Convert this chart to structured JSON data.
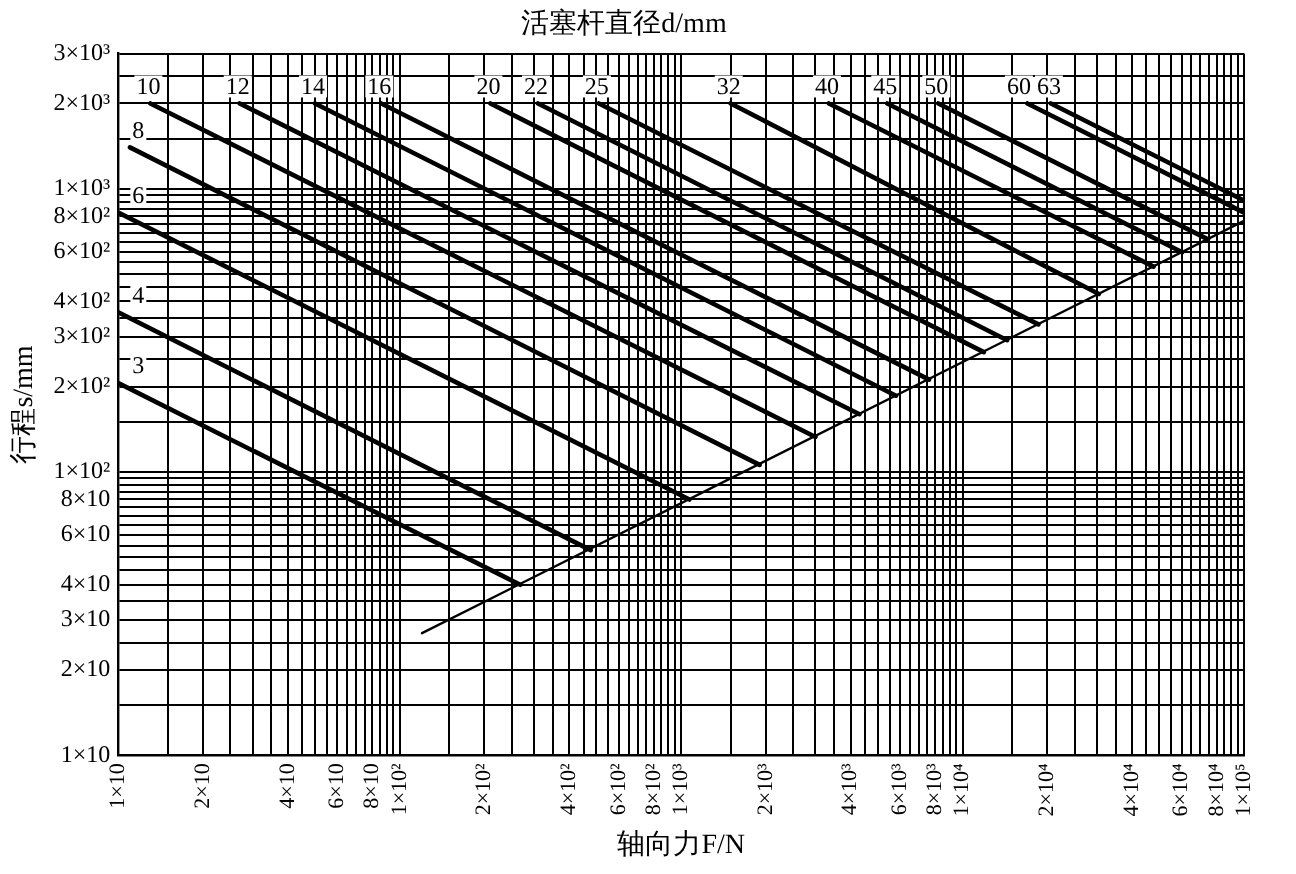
{
  "chart_data": {
    "type": "line",
    "title": "活塞杆直径d/mm",
    "xlabel": "轴向力F/N",
    "ylabel": "行程s/mm",
    "log": "xy",
    "grid": true,
    "xlim": [
      10,
      100000
    ],
    "ylim": [
      10,
      3000
    ],
    "xticks": [
      {
        "value": 10,
        "label": "1×10"
      },
      {
        "value": 15,
        "label": null
      },
      {
        "value": 20,
        "label": "2×10"
      },
      {
        "value": 25,
        "label": null
      },
      {
        "value": 30,
        "label": null
      },
      {
        "value": 35,
        "label": null
      },
      {
        "value": 40,
        "label": "4×10"
      },
      {
        "value": 45,
        "label": null
      },
      {
        "value": 50,
        "label": null
      },
      {
        "value": 55,
        "label": null
      },
      {
        "value": 60,
        "label": "6×10"
      },
      {
        "value": 65,
        "label": null
      },
      {
        "value": 70,
        "label": null
      },
      {
        "value": 75,
        "label": null
      },
      {
        "value": 80,
        "label": "8×10"
      },
      {
        "value": 85,
        "label": null
      },
      {
        "value": 90,
        "label": null
      },
      {
        "value": 95,
        "label": null
      },
      {
        "value": 100,
        "label": "1×10²"
      },
      {
        "value": 150,
        "label": null
      },
      {
        "value": 200,
        "label": "2×10²"
      },
      {
        "value": 250,
        "label": null
      },
      {
        "value": 300,
        "label": null
      },
      {
        "value": 350,
        "label": null
      },
      {
        "value": 400,
        "label": "4×10²"
      },
      {
        "value": 450,
        "label": null
      },
      {
        "value": 500,
        "label": null
      },
      {
        "value": 550,
        "label": null
      },
      {
        "value": 600,
        "label": "6×10²"
      },
      {
        "value": 650,
        "label": null
      },
      {
        "value": 700,
        "label": null
      },
      {
        "value": 750,
        "label": null
      },
      {
        "value": 800,
        "label": "8×10²"
      },
      {
        "value": 850,
        "label": null
      },
      {
        "value": 900,
        "label": null
      },
      {
        "value": 950,
        "label": null
      },
      {
        "value": 1000,
        "label": "1×10³"
      },
      {
        "value": 1500,
        "label": null
      },
      {
        "value": 2000,
        "label": "2×10³"
      },
      {
        "value": 2500,
        "label": null
      },
      {
        "value": 3000,
        "label": null
      },
      {
        "value": 3500,
        "label": null
      },
      {
        "value": 4000,
        "label": "4×10³"
      },
      {
        "value": 4500,
        "label": null
      },
      {
        "value": 5000,
        "label": null
      },
      {
        "value": 5500,
        "label": null
      },
      {
        "value": 6000,
        "label": "6×10³"
      },
      {
        "value": 6500,
        "label": null
      },
      {
        "value": 7000,
        "label": null
      },
      {
        "value": 7500,
        "label": null
      },
      {
        "value": 8000,
        "label": "8×10³"
      },
      {
        "value": 8500,
        "label": null
      },
      {
        "value": 9000,
        "label": null
      },
      {
        "value": 9500,
        "label": null
      },
      {
        "value": 10000,
        "label": "1×10⁴"
      },
      {
        "value": 15000,
        "label": null
      },
      {
        "value": 20000,
        "label": "2×10⁴"
      },
      {
        "value": 25000,
        "label": null
      },
      {
        "value": 30000,
        "label": null
      },
      {
        "value": 35000,
        "label": null
      },
      {
        "value": 40000,
        "label": "4×10⁴"
      },
      {
        "value": 45000,
        "label": null
      },
      {
        "value": 50000,
        "label": null
      },
      {
        "value": 55000,
        "label": null
      },
      {
        "value": 60000,
        "label": "6×10⁴"
      },
      {
        "value": 65000,
        "label": null
      },
      {
        "value": 70000,
        "label": null
      },
      {
        "value": 75000,
        "label": null
      },
      {
        "value": 80000,
        "label": "8×10⁴"
      },
      {
        "value": 85000,
        "label": null
      },
      {
        "value": 90000,
        "label": null
      },
      {
        "value": 95000,
        "label": null
      },
      {
        "value": 100000,
        "label": "1×10⁵"
      }
    ],
    "yticks": [
      {
        "value": 10,
        "label": "1×10"
      },
      {
        "value": 15,
        "label": null
      },
      {
        "value": 20,
        "label": "2×10"
      },
      {
        "value": 25,
        "label": null
      },
      {
        "value": 30,
        "label": "3×10"
      },
      {
        "value": 35,
        "label": null
      },
      {
        "value": 40,
        "label": "4×10"
      },
      {
        "value": 45,
        "label": null
      },
      {
        "value": 50,
        "label": null
      },
      {
        "value": 55,
        "label": null
      },
      {
        "value": 60,
        "label": "6×10"
      },
      {
        "value": 65,
        "label": null
      },
      {
        "value": 70,
        "label": null
      },
      {
        "value": 75,
        "label": null
      },
      {
        "value": 80,
        "label": "8×10"
      },
      {
        "value": 85,
        "label": null
      },
      {
        "value": 90,
        "label": null
      },
      {
        "value": 95,
        "label": null
      },
      {
        "value": 100,
        "label": "1×10²"
      },
      {
        "value": 150,
        "label": null
      },
      {
        "value": 200,
        "label": "2×10²"
      },
      {
        "value": 250,
        "label": null
      },
      {
        "value": 300,
        "label": "3×10²"
      },
      {
        "value": 350,
        "label": null
      },
      {
        "value": 400,
        "label": "4×10²"
      },
      {
        "value": 450,
        "label": null
      },
      {
        "value": 500,
        "label": null
      },
      {
        "value": 550,
        "label": null
      },
      {
        "value": 600,
        "label": "6×10²"
      },
      {
        "value": 650,
        "label": null
      },
      {
        "value": 700,
        "label": null
      },
      {
        "value": 750,
        "label": null
      },
      {
        "value": 800,
        "label": "8×10²"
      },
      {
        "value": 850,
        "label": null
      },
      {
        "value": 900,
        "label": null
      },
      {
        "value": 950,
        "label": null
      },
      {
        "value": 1000,
        "label": "1×10³"
      },
      {
        "value": 1500,
        "label": null
      },
      {
        "value": 2000,
        "label": "2×10³"
      },
      {
        "value": 2500,
        "label": null
      },
      {
        "value": 3000,
        "label": "3×10³"
      }
    ],
    "series": [
      {
        "name": "3",
        "color": "#000000",
        "x": [
          10,
          268
        ],
        "values": [
          206,
          40
        ]
      },
      {
        "name": "4",
        "color": "#000000",
        "x": [
          10,
          477
        ],
        "values": [
          366,
          53
        ]
      },
      {
        "name": "6",
        "color": "#000000",
        "x": [
          10,
          1070
        ],
        "values": [
          824,
          80
        ]
      },
      {
        "name": "8",
        "color": "#000000",
        "x": [
          11,
          1900
        ],
        "values": [
          1400,
          106
        ]
      },
      {
        "name": "10",
        "color": "#000000",
        "x": [
          13,
          3000
        ],
        "values": [
          2000,
          133
        ]
      },
      {
        "name": "12",
        "color": "#000000",
        "x": [
          27,
          4300
        ],
        "values": [
          2000,
          160
        ]
      },
      {
        "name": "14",
        "color": "#000000",
        "x": [
          50,
          5800
        ],
        "values": [
          2000,
          186
        ]
      },
      {
        "name": "16",
        "color": "#000000",
        "x": [
          86,
          7600
        ],
        "values": [
          2000,
          212
        ]
      },
      {
        "name": "20",
        "color": "#000000",
        "x": [
          210,
          11900
        ],
        "values": [
          2000,
          265
        ]
      },
      {
        "name": "22",
        "color": "#000000",
        "x": [
          310,
          14400
        ],
        "values": [
          2000,
          292
        ]
      },
      {
        "name": "25",
        "color": "#000000",
        "x": [
          510,
          18600
        ],
        "values": [
          2000,
          332
        ]
      },
      {
        "name": "32",
        "color": "#000000",
        "x": [
          1500,
          30500
        ],
        "values": [
          2000,
          425
        ]
      },
      {
        "name": "40",
        "color": "#000000",
        "x": [
          3350,
          47700
        ],
        "values": [
          2000,
          531
        ]
      },
      {
        "name": "45",
        "color": "#000000",
        "x": [
          5400,
          60300
        ],
        "values": [
          2000,
          597
        ]
      },
      {
        "name": "50",
        "color": "#000000",
        "x": [
          8200,
          74500
        ],
        "values": [
          2000,
          663
        ]
      },
      {
        "name": "60",
        "color": "#000000",
        "x": [
          17000,
          100000
        ],
        "values": [
          2000,
          824
        ]
      },
      {
        "name": "63",
        "color": "#000000",
        "x": [
          20600,
          100000
        ],
        "values": [
          2000,
          909
        ]
      },
      {
        "color": "#000000",
        "x": [
          120,
          100000
        ],
        "values": [
          27,
          770
        ]
      }
    ]
  }
}
